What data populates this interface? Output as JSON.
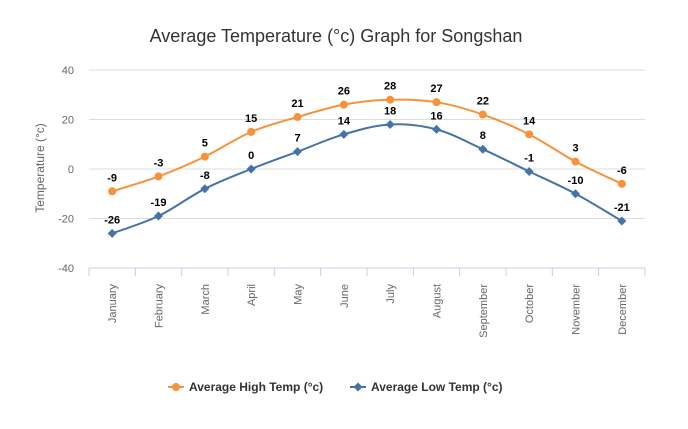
{
  "chart_data": {
    "type": "line",
    "title": "Average Temperature (°c) Graph for Songshan",
    "ylabel": "Temperature (°c)",
    "xlabel": "",
    "ylim": [
      -40,
      40
    ],
    "yticks": [
      40,
      20,
      0,
      -20,
      -40
    ],
    "grid": true,
    "legend_position": "bottom",
    "categories": [
      "January",
      "February",
      "March",
      "April",
      "May",
      "June",
      "July",
      "August",
      "September",
      "October",
      "November",
      "December"
    ],
    "series": [
      {
        "name": "Average High Temp (°c)",
        "color": "#f7923a",
        "marker": "circle",
        "values": [
          -9,
          -3,
          5,
          15,
          21,
          26,
          28,
          27,
          22,
          14,
          3,
          -6
        ],
        "labels": [
          "-9",
          "-3",
          "5",
          "15",
          "21",
          "26",
          "28",
          "27",
          "22",
          "14",
          "3",
          "-6"
        ]
      },
      {
        "name": "Average Low Temp (°c)",
        "color": "#4572a7",
        "marker": "diamond",
        "values": [
          -26,
          -19,
          -8,
          0,
          7,
          14,
          18,
          16,
          8,
          -1,
          -10,
          -21
        ],
        "labels": [
          "-26",
          "-19",
          "-8",
          "0",
          "7",
          "14",
          "18",
          "16",
          "8",
          "-1",
          "-10",
          "-21"
        ]
      }
    ]
  }
}
